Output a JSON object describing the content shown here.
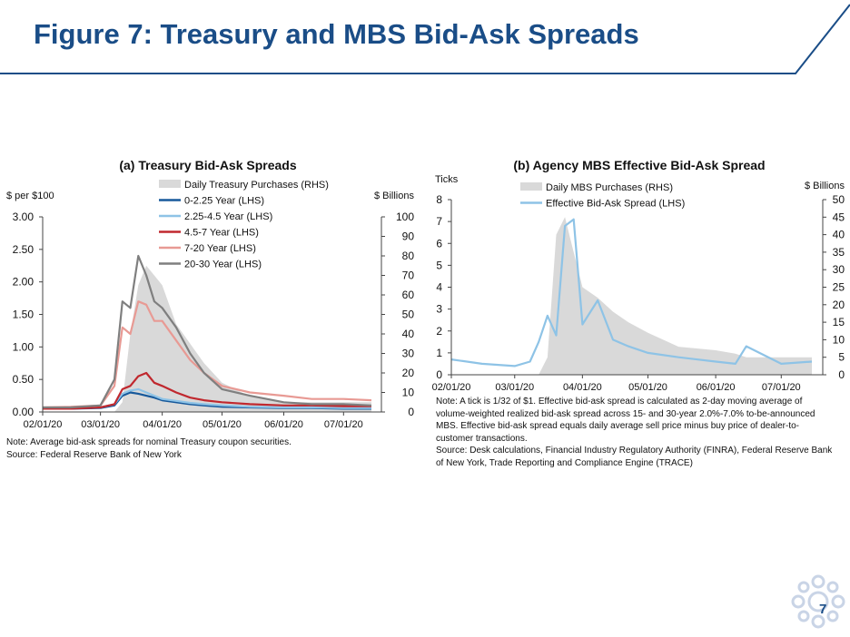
{
  "page": {
    "title": "Figure 7: Treasury and MBS Bid-Ask Spreads",
    "page_number": "7",
    "brand_color": "#1a4d87"
  },
  "left_notes": [
    "Note: Average bid-ask spreads for nominal Treasury coupon securities.",
    "Source: Federal Reserve Bank of New York"
  ],
  "right_notes": [
    "Note: A tick is 1/32 of $1. Effective bid-ask spread is calculated as 2-day moving average of",
    "volume-weighted realized bid-ask spread across 15- and 30-year 2.0%-7.0% to-be-announced",
    "MBS. Effective bid-ask spread equals daily average sell price minus buy price of dealer-to-",
    "customer transactions.",
    "Source: Desk calculations, Financial Industry Regulatory Authority (FINRA), Federal Reserve Bank",
    "of New York, Trade Reporting and Compliance Engine (TRACE)"
  ],
  "chart_data": [
    {
      "type": "line",
      "title": "(a) Treasury Bid-Ask Spreads",
      "ylabel": "$ per $100",
      "y2label": "$ Billions",
      "ylim": [
        0,
        3
      ],
      "y2lim": [
        0,
        100
      ],
      "yticks": [
        "0.00",
        "0.50",
        "1.00",
        "1.50",
        "2.00",
        "2.50",
        "3.00"
      ],
      "y2ticks": [
        "0",
        "10",
        "20",
        "30",
        "40",
        "50",
        "60",
        "70",
        "80",
        "90",
        "100"
      ],
      "xticks": [
        "02/01/20",
        "03/01/20",
        "04/01/20",
        "05/01/20",
        "06/01/20",
        "07/01/20"
      ],
      "legend_position": "top-right",
      "x": [
        "02/01/20",
        "02/15/20",
        "03/01/20",
        "03/08/20",
        "03/12/20",
        "03/16/20",
        "03/20/20",
        "03/24/20",
        "03/28/20",
        "04/01/20",
        "04/08/20",
        "04/15/20",
        "04/22/20",
        "05/01/20",
        "05/15/20",
        "06/01/20",
        "06/15/20",
        "07/01/20",
        "07/15/20"
      ],
      "area": {
        "name": "Daily Treasury Purchases (RHS)",
        "color": "#d9d9d9",
        "values": [
          0,
          0,
          0,
          0,
          5,
          40,
          65,
          75,
          70,
          65,
          45,
          35,
          25,
          15,
          8,
          5,
          5,
          5,
          5
        ]
      },
      "series": [
        {
          "name": "0-2.25 Year (LHS)",
          "color": "#17599b",
          "values": [
            0.05,
            0.05,
            0.06,
            0.1,
            0.25,
            0.3,
            0.28,
            0.25,
            0.22,
            0.18,
            0.15,
            0.12,
            0.1,
            0.08,
            0.07,
            0.06,
            0.06,
            0.05,
            0.05
          ]
        },
        {
          "name": "2.25-4.5 Year (LHS)",
          "color": "#8ec3e6",
          "values": [
            0.05,
            0.06,
            0.07,
            0.12,
            0.28,
            0.33,
            0.35,
            0.3,
            0.25,
            0.2,
            0.17,
            0.14,
            0.12,
            0.1,
            0.08,
            0.07,
            0.07,
            0.06,
            0.06
          ]
        },
        {
          "name": "4.5-7 Year (LHS)",
          "color": "#c0282e",
          "values": [
            0.05,
            0.05,
            0.07,
            0.12,
            0.35,
            0.4,
            0.55,
            0.6,
            0.45,
            0.4,
            0.3,
            0.22,
            0.18,
            0.15,
            0.12,
            0.1,
            0.1,
            0.09,
            0.09
          ]
        },
        {
          "name": "7-20 Year (LHS)",
          "color": "#e89a94",
          "values": [
            0.07,
            0.08,
            0.1,
            0.4,
            1.3,
            1.2,
            1.7,
            1.65,
            1.4,
            1.4,
            1.1,
            0.8,
            0.6,
            0.4,
            0.3,
            0.25,
            0.2,
            0.2,
            0.18
          ]
        },
        {
          "name": "20-30 Year (LHS)",
          "color": "#7f7f7f",
          "values": [
            0.07,
            0.07,
            0.1,
            0.5,
            1.7,
            1.6,
            2.4,
            2.1,
            1.7,
            1.6,
            1.3,
            0.9,
            0.6,
            0.35,
            0.25,
            0.15,
            0.12,
            0.12,
            0.1
          ]
        }
      ]
    },
    {
      "type": "line",
      "title": "(b) Agency MBS Effective Bid-Ask Spread",
      "ylabel": "Ticks",
      "y2label": "$ Billions",
      "ylim": [
        0,
        8
      ],
      "y2lim": [
        0,
        50
      ],
      "yticks": [
        "0",
        "1",
        "2",
        "3",
        "4",
        "5",
        "6",
        "7",
        "8"
      ],
      "y2ticks": [
        "0",
        "5",
        "10",
        "15",
        "20",
        "25",
        "30",
        "35",
        "40",
        "45",
        "50"
      ],
      "xticks": [
        "02/01/20",
        "03/01/20",
        "04/01/20",
        "05/01/20",
        "06/01/20",
        "07/01/20"
      ],
      "legend_position": "top-center",
      "x": [
        "02/01/20",
        "02/15/20",
        "03/01/20",
        "03/08/20",
        "03/12/20",
        "03/16/20",
        "03/20/20",
        "03/24/20",
        "03/28/20",
        "04/01/20",
        "04/08/20",
        "04/15/20",
        "04/22/20",
        "05/01/20",
        "05/15/20",
        "06/01/20",
        "06/10/20",
        "06/15/20",
        "07/01/20",
        "07/15/20"
      ],
      "area": {
        "name": "Daily MBS Purchases (RHS)",
        "color": "#d9d9d9",
        "values": [
          0,
          0,
          0,
          0,
          0,
          5,
          40,
          45,
          35,
          25,
          22,
          18,
          15,
          12,
          8,
          7,
          6,
          5,
          5,
          5
        ]
      },
      "series": [
        {
          "name": "Effective Bid-Ask Spread (LHS)",
          "color": "#8ec3e6",
          "values": [
            0.7,
            0.5,
            0.4,
            0.6,
            1.5,
            2.7,
            1.8,
            6.8,
            7.1,
            2.3,
            3.4,
            1.6,
            1.3,
            1.0,
            0.8,
            0.6,
            0.5,
            1.3,
            0.5,
            0.6
          ]
        }
      ]
    }
  ]
}
